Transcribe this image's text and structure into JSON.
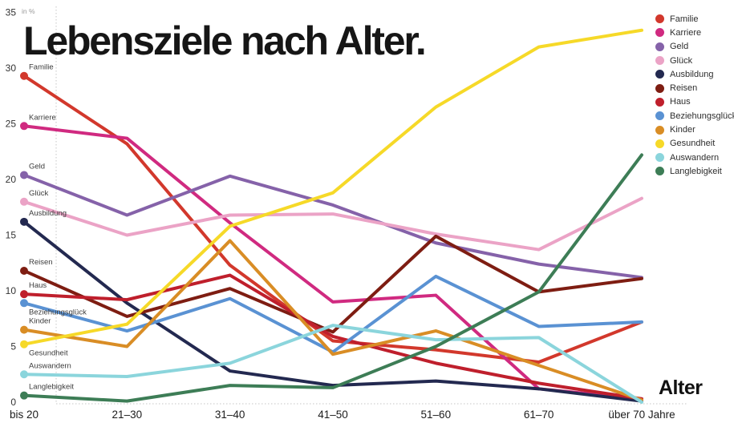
{
  "title": "Lebensziele nach Alter.",
  "y_axis": {
    "unit_label": "in %",
    "ticks": [
      0,
      5,
      10,
      15,
      20,
      25,
      30,
      35
    ]
  },
  "x_axis": {
    "title": "Alter"
  },
  "chart_data": {
    "type": "line",
    "title": "Lebensziele nach Alter.",
    "xlabel": "Alter",
    "ylabel": "in %",
    "ylim": [
      0,
      35
    ],
    "grid": false,
    "legend_position": "top-right",
    "categories": [
      "bis 20",
      "21–30",
      "31–40",
      "41–50",
      "51–60",
      "61–70",
      "über 70 Jahre"
    ],
    "series": [
      {
        "name": "Familie",
        "color": "#d2382c",
        "values": [
          29.3,
          23.2,
          12.3,
          5.5,
          4.7,
          3.6,
          7.2
        ]
      },
      {
        "name": "Karriere",
        "color": "#d02a80",
        "values": [
          24.8,
          23.7,
          16.1,
          9.0,
          9.6,
          1.2,
          0.3
        ]
      },
      {
        "name": "Geld",
        "color": "#8562a9",
        "values": [
          20.4,
          16.8,
          20.3,
          17.7,
          14.3,
          12.4,
          11.2
        ]
      },
      {
        "name": "Glück",
        "color": "#eba3c6",
        "values": [
          18.0,
          15.0,
          16.8,
          16.9,
          15.1,
          13.7,
          18.3
        ]
      },
      {
        "name": "Ausbildung",
        "color": "#232950",
        "values": [
          16.2,
          8.9,
          2.8,
          1.5,
          1.9,
          1.2,
          0.1
        ]
      },
      {
        "name": "Reisen",
        "color": "#7e1d12",
        "values": [
          11.8,
          7.7,
          10.2,
          6.3,
          14.9,
          9.9,
          11.1
        ]
      },
      {
        "name": "Haus",
        "color": "#bf1f2c",
        "values": [
          9.7,
          9.2,
          11.4,
          5.9,
          3.5,
          1.7,
          0.3
        ]
      },
      {
        "name": "Beziehungsglück",
        "color": "#5a92d3",
        "values": [
          8.9,
          6.4,
          9.3,
          4.5,
          11.3,
          6.8,
          7.2
        ]
      },
      {
        "name": "Kinder",
        "color": "#d98d25",
        "values": [
          6.5,
          5.0,
          14.5,
          4.3,
          6.4,
          3.3,
          0.2
        ]
      },
      {
        "name": "Gesundheit",
        "color": "#f6d928",
        "values": [
          5.2,
          7.0,
          15.8,
          18.8,
          26.5,
          31.9,
          33.4
        ]
      },
      {
        "name": "Auswandern",
        "color": "#8bd5dc",
        "values": [
          2.5,
          2.3,
          3.5,
          6.9,
          5.6,
          5.8,
          0.0
        ]
      },
      {
        "name": "Langlebigkeit",
        "color": "#3d7d56",
        "values": [
          0.6,
          0.1,
          1.5,
          1.3,
          5.0,
          9.9,
          22.2
        ]
      }
    ]
  }
}
